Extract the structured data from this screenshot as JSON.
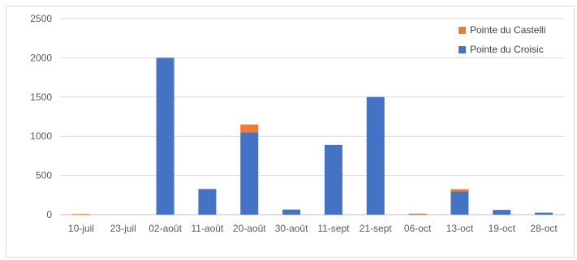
{
  "chart_data": {
    "type": "bar",
    "stacked": true,
    "categories": [
      "10-juil",
      "23-juil",
      "02-août",
      "11-août",
      "20-août",
      "30-août",
      "11-sept",
      "21-sept",
      "06-oct",
      "13-oct",
      "19-oct",
      "28-oct"
    ],
    "series": [
      {
        "name": "Pointe du Croisic",
        "color": "#4472c4",
        "values": [
          0,
          0,
          2000,
          320,
          1050,
          65,
          890,
          1500,
          8,
          295,
          60,
          25
        ]
      },
      {
        "name": "Pointe du Castelli",
        "color": "#ed7d31",
        "values": [
          8,
          0,
          0,
          10,
          100,
          0,
          0,
          0,
          5,
          30,
          0,
          0
        ]
      }
    ],
    "ylim": [
      0,
      2500
    ],
    "yticks": [
      0,
      500,
      1000,
      1500,
      2000,
      2500
    ],
    "grid": true,
    "legend_position": "top-right",
    "title": "",
    "xlabel": "",
    "ylabel": ""
  }
}
